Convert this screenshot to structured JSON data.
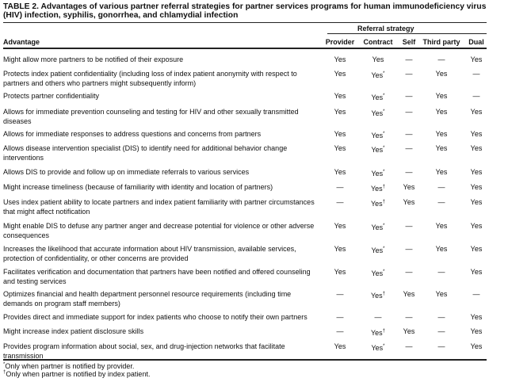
{
  "title": "TABLE 2. Advantages of various partner referral strategies for partner services programs for human immunodeficiency virus (HIV) infection, syphilis, gonorrhea, and chlamydial infection",
  "group_header": "Referral strategy",
  "columns": [
    "Advantage",
    "Provider",
    "Contract",
    "Self",
    "Third party",
    "Dual"
  ],
  "rows": [
    {
      "advantage": "Might allow more partners to be notified of their exposure",
      "values": [
        "Yes",
        "Yes",
        "—",
        "—",
        "Yes"
      ],
      "marks": [
        "",
        "",
        "",
        "",
        ""
      ]
    },
    {
      "advantage": "Protects index patient confidentiality (including loss of index patient anonymity with respect to partners and others who partners might subsequently inform)",
      "values": [
        "Yes",
        "Yes",
        "—",
        "Yes",
        "—"
      ],
      "marks": [
        "",
        "*",
        "",
        "",
        ""
      ]
    },
    {
      "advantage": "Protects partner confidentiality",
      "values": [
        "Yes",
        "Yes",
        "—",
        "Yes",
        "—"
      ],
      "marks": [
        "",
        "*",
        "",
        "",
        ""
      ]
    },
    {
      "advantage": "Allows for immediate prevention counseling and testing for HIV and other sexually transmitted diseases",
      "values": [
        "Yes",
        "Yes",
        "—",
        "Yes",
        "Yes"
      ],
      "marks": [
        "",
        "*",
        "",
        "",
        ""
      ]
    },
    {
      "advantage": "Allows for immediate responses to address questions and concerns from partners",
      "values": [
        "Yes",
        "Yes",
        "—",
        "Yes",
        "Yes"
      ],
      "marks": [
        "",
        "*",
        "",
        "",
        ""
      ]
    },
    {
      "advantage": "Allows disease intervention specialist (DIS) to identify need for additional behavior change interventions",
      "values": [
        "Yes",
        "Yes",
        "—",
        "Yes",
        "Yes"
      ],
      "marks": [
        "",
        "*",
        "",
        "",
        ""
      ]
    },
    {
      "advantage": "Allows DIS to provide and follow up on immediate referrals to various services",
      "values": [
        "Yes",
        "Yes",
        "—",
        "Yes",
        "Yes"
      ],
      "marks": [
        "",
        "*",
        "",
        "",
        ""
      ]
    },
    {
      "advantage": "Might increase timeliness (because of familiarity with identity and location of partners)",
      "values": [
        "—",
        "Yes",
        "Yes",
        "—",
        "Yes"
      ],
      "marks": [
        "",
        "†",
        "",
        "",
        ""
      ]
    },
    {
      "advantage": "Uses index patient ability to locate partners and index patient familiarity with partner circumstances that might affect notification",
      "values": [
        "—",
        "Yes",
        "Yes",
        "—",
        "Yes"
      ],
      "marks": [
        "",
        "†",
        "",
        "",
        ""
      ]
    },
    {
      "advantage": "Might enable DIS to defuse any partner anger and decrease potential for violence or other adverse consequences",
      "values": [
        "Yes",
        "Yes",
        "—",
        "Yes",
        "Yes"
      ],
      "marks": [
        "",
        "*",
        "",
        "",
        ""
      ]
    },
    {
      "advantage": "Increases the likelihood that accurate information about HIV transmission, available services, protection of confidentiality, or other concerns are provided",
      "values": [
        "Yes",
        "Yes",
        "—",
        "Yes",
        "Yes"
      ],
      "marks": [
        "",
        "*",
        "",
        "",
        ""
      ]
    },
    {
      "advantage": "Facilitates verification and documentation that partners have been notified and offered counseling and testing services",
      "values": [
        "Yes",
        "Yes",
        "—",
        "—",
        "Yes"
      ],
      "marks": [
        "",
        "*",
        "",
        "",
        ""
      ]
    },
    {
      "advantage": "Optimizes financial and health department personnel resource requirements (including time demands on program staff members)",
      "values": [
        "—",
        "Yes",
        "Yes",
        "Yes",
        "—"
      ],
      "marks": [
        "",
        "†",
        "",
        "",
        ""
      ]
    },
    {
      "advantage": "Provides direct and immediate support for index patients who choose to notify their own partners",
      "values": [
        "—",
        "—",
        "—",
        "—",
        "Yes"
      ],
      "marks": [
        "",
        "",
        "",
        "",
        ""
      ]
    },
    {
      "advantage": "Might increase index patient disclosure skills",
      "values": [
        "—",
        "Yes",
        "Yes",
        "—",
        "Yes"
      ],
      "marks": [
        "",
        "†",
        "",
        "",
        ""
      ]
    },
    {
      "advantage": "Provides program information about social, sex, and drug-injection networks that facilitate transmission",
      "values": [
        "Yes",
        "Yes",
        "—",
        "—",
        "Yes"
      ],
      "marks": [
        "",
        "*",
        "",
        "",
        ""
      ]
    }
  ],
  "footnotes": [
    {
      "mark": "*",
      "text": "Only when partner is notified by provider."
    },
    {
      "mark": "†",
      "text": "Only when partner is notified by index patient."
    }
  ]
}
